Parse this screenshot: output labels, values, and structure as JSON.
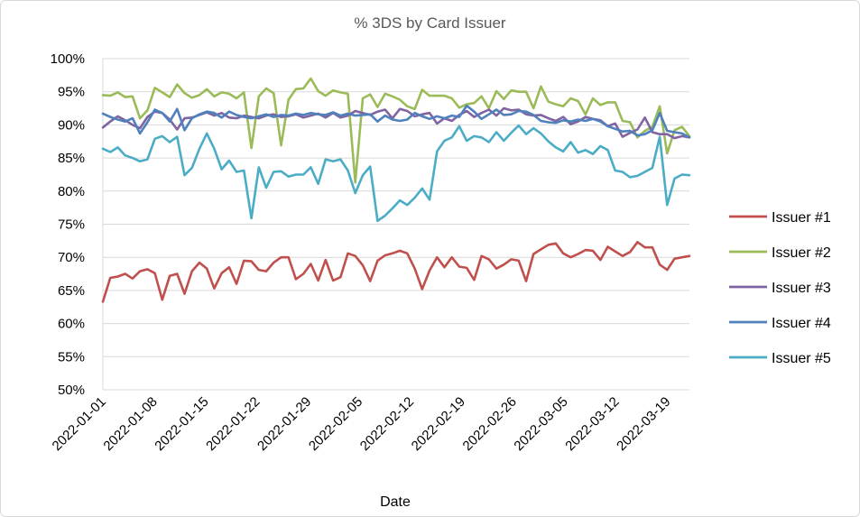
{
  "chart_data": {
    "type": "line",
    "title": "% 3DS by Card Issuer",
    "xlabel": "Date",
    "ylabel": "",
    "ylim": [
      0.5,
      1.0
    ],
    "y_ticks": [
      {
        "value": 0.5,
        "label": "50%"
      },
      {
        "value": 0.55,
        "label": "55%"
      },
      {
        "value": 0.6,
        "label": "60%"
      },
      {
        "value": 0.65,
        "label": "65%"
      },
      {
        "value": 0.7,
        "label": "70%"
      },
      {
        "value": 0.75,
        "label": "75%"
      },
      {
        "value": 0.8,
        "label": "80%"
      },
      {
        "value": 0.85,
        "label": "85%"
      },
      {
        "value": 0.9,
        "label": "90%"
      },
      {
        "value": 0.95,
        "label": "95%"
      },
      {
        "value": 1.0,
        "label": "100%"
      }
    ],
    "x_start": "2022-01-01",
    "x_end": "2022-03-22",
    "x_tick_labels": [
      "2022-01-01",
      "2022-01-08",
      "2022-01-15",
      "2022-01-22",
      "2022-01-29",
      "2022-02-05",
      "2022-02-12",
      "2022-02-19",
      "2022-02-26",
      "2022-03-05",
      "2022-03-12",
      "2022-03-19"
    ],
    "grid": "horizontal",
    "legend_position": "right",
    "series": [
      {
        "name": "Issuer #1",
        "color": "#c0504d",
        "values": [
          63.3,
          66.9,
          67.1,
          67.5,
          66.8,
          67.9,
          68.2,
          67.6,
          63.6,
          67.2,
          67.5,
          64.5,
          67.9,
          69.2,
          68.3,
          65.3,
          67.6,
          68.5,
          66.0,
          69.5,
          69.4,
          68.1,
          67.9,
          69.2,
          70.0,
          70.0,
          66.7,
          67.5,
          69.0,
          66.5,
          69.6,
          66.5,
          67.0,
          70.6,
          70.2,
          68.8,
          66.4,
          69.5,
          70.3,
          70.6,
          71.0,
          70.6,
          68.3,
          65.2,
          68.0,
          70.0,
          68.5,
          70.0,
          68.6,
          68.4,
          66.6,
          70.2,
          69.7,
          68.3,
          68.9,
          69.7,
          69.5,
          66.4,
          70.5,
          71.2,
          71.9,
          72.1,
          70.6,
          70.0,
          70.5,
          71.1,
          71.0,
          69.6,
          71.6,
          70.9,
          70.2,
          70.8,
          72.3,
          71.5,
          71.5,
          68.9,
          68.1,
          69.8,
          70.0,
          70.2
        ]
      },
      {
        "name": "Issuer #2",
        "color": "#9bbb59",
        "values": [
          94.5,
          94.4,
          94.9,
          94.2,
          94.3,
          91.0,
          92.2,
          95.6,
          94.9,
          94.2,
          96.1,
          94.8,
          94.1,
          94.5,
          95.4,
          94.3,
          94.9,
          94.7,
          94.0,
          94.9,
          86.5,
          94.3,
          95.5,
          94.8,
          86.9,
          93.8,
          95.4,
          95.5,
          97.0,
          95.1,
          94.4,
          95.2,
          94.9,
          94.7,
          81.3,
          94.0,
          94.6,
          92.7,
          94.7,
          94.3,
          93.8,
          92.8,
          92.4,
          95.3,
          94.4,
          94.4,
          94.4,
          94.0,
          92.6,
          93.1,
          93.3,
          94.3,
          92.5,
          95.1,
          93.9,
          95.2,
          95.0,
          95.0,
          92.5,
          95.8,
          93.5,
          93.1,
          92.8,
          94.0,
          93.6,
          91.6,
          94.0,
          93.0,
          93.4,
          93.4,
          90.6,
          90.4,
          88.1,
          89.1,
          89.7,
          92.8,
          85.7,
          89.2,
          89.7,
          88.3
        ]
      },
      {
        "name": "Issuer #3",
        "color": "#8064a2",
        "values": [
          89.6,
          90.5,
          91.3,
          90.7,
          90.0,
          89.5,
          91.2,
          92.0,
          91.8,
          90.8,
          89.3,
          91.0,
          91.1,
          91.5,
          91.9,
          91.4,
          91.8,
          91.1,
          91.0,
          91.4,
          91.2,
          91.0,
          91.4,
          91.6,
          91.2,
          91.3,
          91.6,
          91.1,
          91.4,
          91.7,
          91.1,
          91.8,
          91.1,
          91.4,
          92.1,
          91.8,
          91.5,
          92.0,
          92.3,
          91.0,
          92.4,
          92.1,
          91.3,
          91.6,
          91.8,
          90.2,
          91.0,
          90.6,
          91.5,
          92.1,
          91.2,
          91.8,
          92.3,
          91.4,
          92.5,
          92.2,
          92.3,
          91.6,
          91.4,
          91.5,
          91.0,
          90.6,
          91.2,
          90.1,
          90.5,
          91.2,
          90.9,
          90.7,
          89.8,
          90.2,
          88.2,
          88.8,
          89.3,
          91.1,
          88.9,
          88.6,
          88.6,
          88.0,
          88.3,
          88.1
        ]
      },
      {
        "name": "Issuer #4",
        "color": "#4f81bd",
        "values": [
          91.7,
          91.2,
          90.8,
          90.5,
          91.0,
          88.7,
          90.4,
          92.3,
          91.8,
          90.5,
          92.4,
          89.2,
          91.0,
          91.6,
          92.0,
          91.8,
          91.1,
          92.0,
          91.5,
          91.2,
          91.0,
          91.3,
          91.6,
          91.2,
          91.5,
          91.4,
          91.7,
          91.5,
          91.8,
          91.6,
          91.5,
          91.9,
          91.4,
          91.7,
          91.4,
          91.5,
          91.6,
          90.5,
          91.4,
          90.8,
          90.6,
          90.8,
          91.8,
          91.3,
          90.9,
          91.3,
          91.0,
          91.4,
          91.2,
          92.9,
          92.0,
          90.9,
          91.6,
          92.3,
          91.5,
          91.6,
          92.1,
          92.0,
          91.5,
          90.6,
          90.4,
          90.3,
          90.7,
          90.5,
          90.8,
          90.6,
          90.9,
          90.5,
          89.8,
          89.4,
          89.0,
          89.1,
          88.4,
          88.6,
          89.2,
          91.8,
          89.1,
          88.9,
          88.7,
          88.1
        ]
      },
      {
        "name": "Issuer #5",
        "color": "#4bacc6",
        "values": [
          86.4,
          85.9,
          86.6,
          85.4,
          85.0,
          84.5,
          84.8,
          87.9,
          88.3,
          87.4,
          88.2,
          82.4,
          83.5,
          86.4,
          88.7,
          86.4,
          83.3,
          84.6,
          82.9,
          83.1,
          75.9,
          83.6,
          80.5,
          82.9,
          83.0,
          82.2,
          82.5,
          82.5,
          83.6,
          81.1,
          84.8,
          84.5,
          84.8,
          83.1,
          79.7,
          82.4,
          83.7,
          75.5,
          76.3,
          77.4,
          78.6,
          77.9,
          79.0,
          80.4,
          78.7,
          86.0,
          87.6,
          88.1,
          89.8,
          87.6,
          88.3,
          88.1,
          87.4,
          88.9,
          87.6,
          88.8,
          89.9,
          88.6,
          89.5,
          88.7,
          87.5,
          86.6,
          86.0,
          87.4,
          85.8,
          86.2,
          85.6,
          86.8,
          86.2,
          83.1,
          82.9,
          82.1,
          82.3,
          82.9,
          83.5,
          88.2,
          77.9,
          81.9,
          82.5,
          82.4
        ]
      }
    ]
  }
}
